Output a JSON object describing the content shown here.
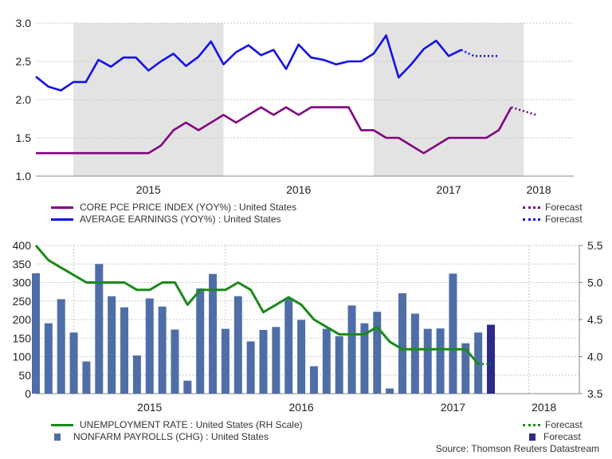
{
  "colors": {
    "pce": "#800080",
    "earnings": "#1212e8",
    "unemployment": "#1a8a1a",
    "payrolls": "#4f6ea8",
    "payrolls_forecast": "#2b2b8c",
    "shade": "#e3e3e3",
    "grid": "#c8c8c8"
  },
  "legend": {
    "top": {
      "pce_label": "CORE PCE PRICE INDEX (YOY%) : United States",
      "earnings_label": "AVERAGE EARNINGS (YOY%) : United States",
      "forecast1": "Forecast",
      "forecast2": "Forecast"
    },
    "bottom": {
      "unemployment_label": "UNEMPLOYMENT RATE : United States (RH Scale)",
      "payrolls_label": "NONFARM PAYROLLS (CHG) : United States",
      "forecast1": "Forecast",
      "forecast2": "Forecast"
    }
  },
  "source": "Source: Thomson Reuters Datastream",
  "chart_data": [
    {
      "type": "line",
      "title": "",
      "xlabel": "",
      "ylabel": "",
      "ylim": [
        1.0,
        3.0
      ],
      "yticks": [
        "1.0",
        "1.5",
        "2.0",
        "2.5",
        "3.0"
      ],
      "x_start": 2014.75,
      "x_end": 2018.333,
      "year_labels": [
        {
          "label": "2015",
          "x": 2015.5
        },
        {
          "label": "2016",
          "x": 2016.5
        },
        {
          "label": "2017",
          "x": 2017.5
        },
        {
          "label": "2018",
          "x": 2018.1
        }
      ],
      "shaded_years": [
        [
          2015.0,
          2016.0
        ],
        [
          2017.0,
          2018.0
        ]
      ],
      "series": [
        {
          "name": "CORE PCE PRICE INDEX (YOY%) : United States",
          "start": 2014.75,
          "values": [
            1.3,
            1.3,
            1.3,
            1.3,
            1.3,
            1.3,
            1.3,
            1.3,
            1.3,
            1.3,
            1.4,
            1.6,
            1.7,
            1.6,
            1.7,
            1.8,
            1.7,
            1.8,
            1.9,
            1.8,
            1.9,
            1.8,
            1.9,
            1.9,
            1.9,
            1.9,
            1.6,
            1.6,
            1.5,
            1.5,
            1.4,
            1.3,
            1.4,
            1.5,
            1.5,
            1.5,
            1.5,
            1.6,
            1.9
          ],
          "forecast": [
            1.9,
            1.85,
            1.8
          ]
        },
        {
          "name": "AVERAGE EARNINGS (YOY%) : United States",
          "start": 2014.75,
          "values": [
            2.3,
            2.17,
            2.12,
            2.23,
            2.23,
            2.52,
            2.43,
            2.55,
            2.55,
            2.38,
            2.5,
            2.6,
            2.44,
            2.56,
            2.76,
            2.46,
            2.62,
            2.71,
            2.58,
            2.65,
            2.4,
            2.72,
            2.55,
            2.52,
            2.46,
            2.5,
            2.5,
            2.6,
            2.84,
            2.29,
            2.46,
            2.66,
            2.77,
            2.57,
            2.65
          ],
          "forecast": [
            2.65,
            2.57,
            2.57,
            2.57
          ]
        }
      ]
    },
    {
      "type": "bar+line",
      "title": "",
      "xlabel": "",
      "ylabel": "",
      "ylim": [
        0,
        400
      ],
      "yticks": [
        "0",
        "50",
        "100",
        "150",
        "200",
        "250",
        "300",
        "350",
        "400"
      ],
      "y2lim": [
        3.5,
        5.5
      ],
      "y2ticks": [
        "3.5",
        "4.0",
        "4.5",
        "5.0",
        "5.5"
      ],
      "x_start": 2014.75,
      "x_end": 2018.333,
      "year_labels": [
        {
          "label": "2015",
          "x": 2015.5
        },
        {
          "label": "2016",
          "x": 2016.5
        },
        {
          "label": "2017",
          "x": 2017.5
        },
        {
          "label": "2018",
          "x": 2018.1
        }
      ],
      "year_dividers": [
        2015.0,
        2016.0,
        2017.0,
        2018.0
      ],
      "bars": {
        "name": "NONFARM PAYROLLS (CHG) : United States",
        "start": 2014.75,
        "values": [
          325,
          190,
          255,
          165,
          87,
          350,
          263,
          233,
          103,
          257,
          235,
          173,
          35,
          284,
          323,
          175,
          263,
          141,
          172,
          180,
          258,
          199,
          74,
          175,
          155,
          238,
          190,
          221,
          14,
          271,
          216,
          175,
          176,
          324,
          136,
          165
        ],
        "forecast": [
          186
        ]
      },
      "line": {
        "name": "UNEMPLOYMENT RATE : United States (RH Scale)",
        "start": 2014.75,
        "values": [
          5.5,
          5.3,
          5.2,
          5.1,
          5.0,
          5.0,
          5.0,
          5.0,
          4.9,
          4.9,
          5.0,
          5.0,
          4.7,
          4.9,
          4.9,
          4.9,
          5.0,
          4.9,
          4.6,
          4.7,
          4.8,
          4.7,
          4.5,
          4.4,
          4.3,
          4.3,
          4.3,
          4.4,
          4.2,
          4.1,
          4.1,
          4.1,
          4.1,
          4.1,
          4.1,
          3.9
        ],
        "forecast": [
          3.9,
          3.9
        ]
      }
    }
  ]
}
